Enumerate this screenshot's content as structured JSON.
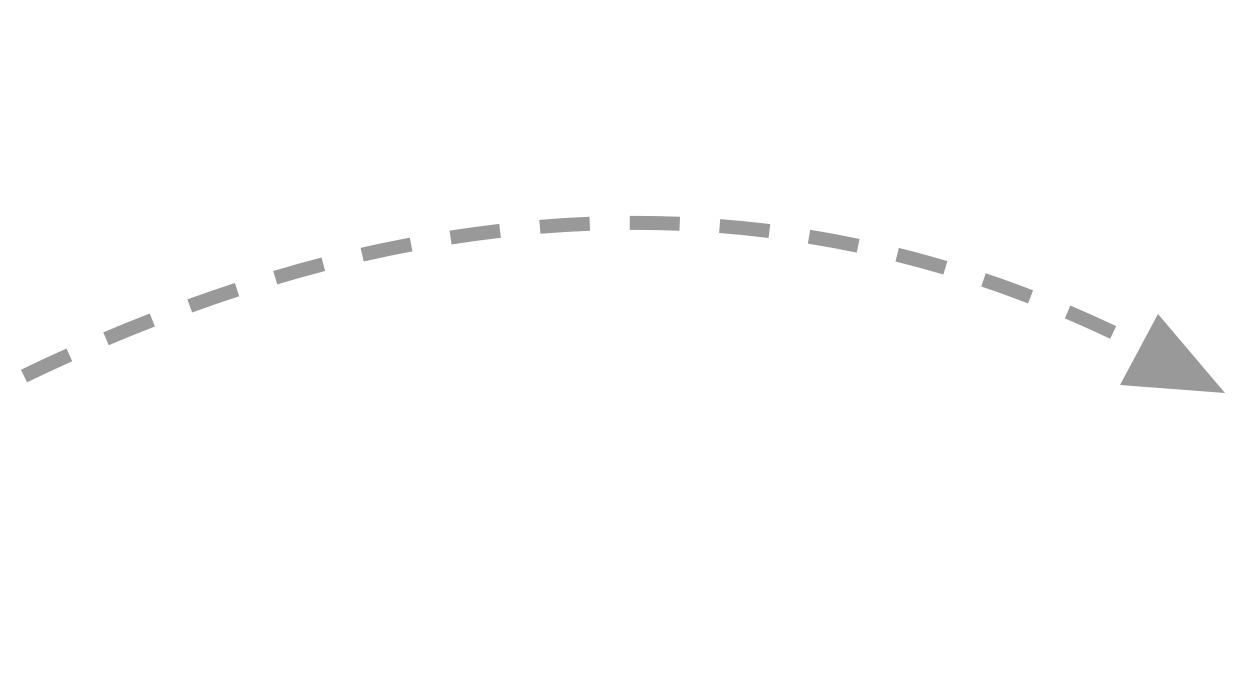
{
  "diagram": {
    "shape": "curved-dashed-arrow",
    "direction": "left-to-right",
    "stroke_color": "#999999",
    "background_color": "#ffffff",
    "line_style": "dashed"
  }
}
